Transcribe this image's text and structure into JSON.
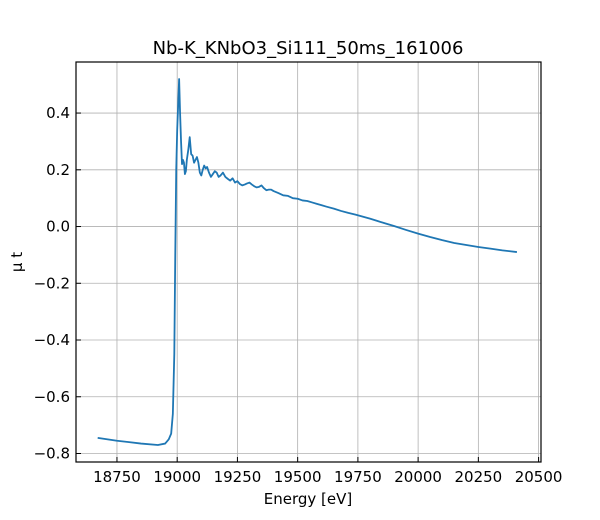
{
  "chart_data": {
    "type": "line",
    "title": "Nb-K_KNbO3_Si111_50ms_161006",
    "xlabel": "Energy [eV]",
    "ylabel": "μ t",
    "xlim": [
      18580,
      20510
    ],
    "ylim": [
      -0.83,
      0.58
    ],
    "grid": true,
    "line_color": "#1f77b4",
    "x_ticks": [
      18750,
      19000,
      19250,
      19500,
      19750,
      20000,
      20250,
      20500
    ],
    "x_tick_labels": [
      "18750",
      "19000",
      "19250",
      "19500",
      "19750",
      "20000",
      "20250",
      "20500"
    ],
    "y_ticks": [
      -0.8,
      -0.6,
      -0.4,
      -0.2,
      0.0,
      0.2,
      0.4
    ],
    "y_tick_labels": [
      "−0.8",
      "−0.6",
      "−0.4",
      "−0.2",
      "0.0",
      "0.2",
      "0.4"
    ],
    "series": [
      {
        "x": [
          18670,
          18750,
          18850,
          18920,
          18950,
          18965,
          18975,
          18982,
          18988,
          18992,
          18996,
          19000,
          19004,
          19008,
          19012,
          19016,
          19020,
          19024,
          19028,
          19032,
          19036,
          19040,
          19046,
          19052,
          19058,
          19064,
          19070,
          19076,
          19082,
          19088,
          19094,
          19100,
          19106,
          19112,
          19118,
          19124,
          19132,
          19140,
          19148,
          19156,
          19164,
          19172,
          19180,
          19190,
          19200,
          19210,
          19220,
          19230,
          19240,
          19250,
          19260,
          19270,
          19280,
          19290,
          19300,
          19310,
          19320,
          19330,
          19340,
          19350,
          19360,
          19370,
          19380,
          19390,
          19400,
          19420,
          19440,
          19460,
          19480,
          19500,
          19520,
          19540,
          19560,
          19580,
          19600,
          19620,
          19650,
          19680,
          19710,
          19740,
          19770,
          19800,
          19830,
          19860,
          19900,
          19950,
          20000,
          20050,
          20100,
          20150,
          20200,
          20250,
          20300,
          20350,
          20410
        ],
        "y": [
          -0.745,
          -0.755,
          -0.765,
          -0.77,
          -0.765,
          -0.75,
          -0.73,
          -0.66,
          -0.45,
          -0.1,
          0.2,
          0.34,
          0.43,
          0.52,
          0.4,
          0.3,
          0.22,
          0.235,
          0.225,
          0.185,
          0.195,
          0.235,
          0.27,
          0.315,
          0.255,
          0.25,
          0.225,
          0.235,
          0.245,
          0.225,
          0.19,
          0.18,
          0.2,
          0.215,
          0.205,
          0.21,
          0.19,
          0.175,
          0.185,
          0.195,
          0.19,
          0.175,
          0.18,
          0.19,
          0.175,
          0.168,
          0.162,
          0.17,
          0.155,
          0.16,
          0.15,
          0.145,
          0.148,
          0.152,
          0.155,
          0.148,
          0.142,
          0.138,
          0.14,
          0.145,
          0.135,
          0.128,
          0.13,
          0.13,
          0.125,
          0.118,
          0.11,
          0.108,
          0.1,
          0.098,
          0.092,
          0.09,
          0.085,
          0.08,
          0.075,
          0.07,
          0.063,
          0.055,
          0.048,
          0.042,
          0.035,
          0.028,
          0.02,
          0.012,
          0.002,
          -0.012,
          -0.025,
          -0.037,
          -0.048,
          -0.058,
          -0.065,
          -0.072,
          -0.078,
          -0.084,
          -0.09
        ]
      }
    ]
  }
}
